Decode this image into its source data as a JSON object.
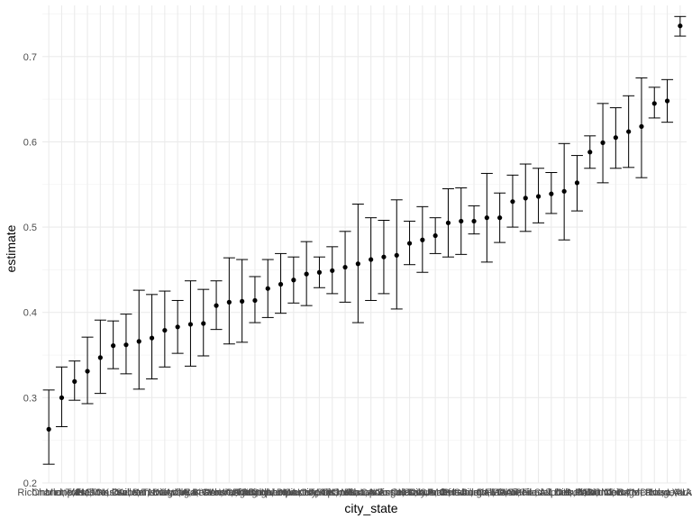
{
  "chart_data": {
    "type": "scatter",
    "title": "",
    "xlabel": "city_state",
    "ylabel": "estimate",
    "ylim": [
      0.2,
      0.76
    ],
    "yticks": [
      0.2,
      0.3,
      0.4,
      0.5,
      0.6,
      0.7
    ],
    "grid": true,
    "error_bars": true,
    "categories": [
      "Richmond, VA",
      "Charlotte, NC",
      "Memphis, TN",
      "Tulsa, OK",
      "Fresno, CA",
      "Milwaukee, WI",
      "Nashville, TN",
      "Durham, NC",
      "Sacramento, CA",
      "San Diego, CA",
      "Louisville, KY",
      "Atlanta, GA",
      "Long Beach, CA",
      "Fort Worth, TX",
      "Denver, CO",
      "Las Vegas, NV",
      "Washington, DC",
      "Birmingham, AL",
      "Albuquerque, NM",
      "Oklahoma City, OK",
      "Houston, TX",
      "Minneapolis, MN",
      "Tampa, FL",
      "Stockton, CA",
      "Omaha, NE",
      "Indianapolis, IN",
      "San Antonio, TX",
      "Los Angeles, CA",
      "Kansas City, MO",
      "Columbus, OH",
      "Savannah, GA",
      "San Francisco, CA",
      "Jacksonville, FL",
      "Pittsburgh, PA",
      "Boston, MA",
      "Dallas, TX",
      "Miami, FL",
      "Phoenix, AZ",
      "Cincinnati, OH",
      "Philadelphia, PA",
      "St. Louis, MO",
      "Detroit, MI",
      "Buffalo, NY",
      "Oakland, CA",
      "Baltimore, MD",
      "Chicago, IL",
      "New Orleans, LA",
      "Baton Rouge, LA",
      "Tulsa, AL",
      "New York, NY"
    ],
    "series": [
      {
        "values": [
          0.263,
          0.3,
          0.319,
          0.331,
          0.347,
          0.361,
          0.362,
          0.366,
          0.37,
          0.379,
          0.383,
          0.386,
          0.387,
          0.408,
          0.412,
          0.413,
          0.414,
          0.428,
          0.433,
          0.438,
          0.445,
          0.447,
          0.449,
          0.453,
          0.457,
          0.462,
          0.465,
          0.467,
          0.481,
          0.485,
          0.49,
          0.505,
          0.507,
          0.507,
          0.511,
          0.511,
          0.53,
          0.534,
          0.536,
          0.539,
          0.542,
          0.552,
          0.588,
          0.599,
          0.605,
          0.612,
          0.618,
          0.645,
          0.648,
          0.736
        ],
        "lower": [
          0.222,
          0.266,
          0.297,
          0.293,
          0.305,
          0.334,
          0.328,
          0.31,
          0.322,
          0.336,
          0.352,
          0.337,
          0.349,
          0.38,
          0.363,
          0.365,
          0.388,
          0.394,
          0.399,
          0.411,
          0.408,
          0.429,
          0.422,
          0.412,
          0.388,
          0.414,
          0.422,
          0.404,
          0.456,
          0.447,
          0.469,
          0.465,
          0.468,
          0.492,
          0.459,
          0.482,
          0.5,
          0.495,
          0.505,
          0.516,
          0.485,
          0.519,
          0.569,
          0.552,
          0.569,
          0.57,
          0.558,
          0.628,
          0.623,
          0.724
        ],
        "upper": [
          0.309,
          0.336,
          0.343,
          0.371,
          0.391,
          0.39,
          0.398,
          0.426,
          0.421,
          0.425,
          0.414,
          0.437,
          0.427,
          0.437,
          0.464,
          0.462,
          0.442,
          0.462,
          0.469,
          0.465,
          0.483,
          0.465,
          0.477,
          0.495,
          0.527,
          0.511,
          0.508,
          0.532,
          0.507,
          0.524,
          0.511,
          0.545,
          0.546,
          0.525,
          0.563,
          0.54,
          0.561,
          0.574,
          0.569,
          0.564,
          0.598,
          0.584,
          0.607,
          0.645,
          0.64,
          0.654,
          0.675,
          0.664,
          0.673,
          0.747
        ]
      }
    ]
  }
}
